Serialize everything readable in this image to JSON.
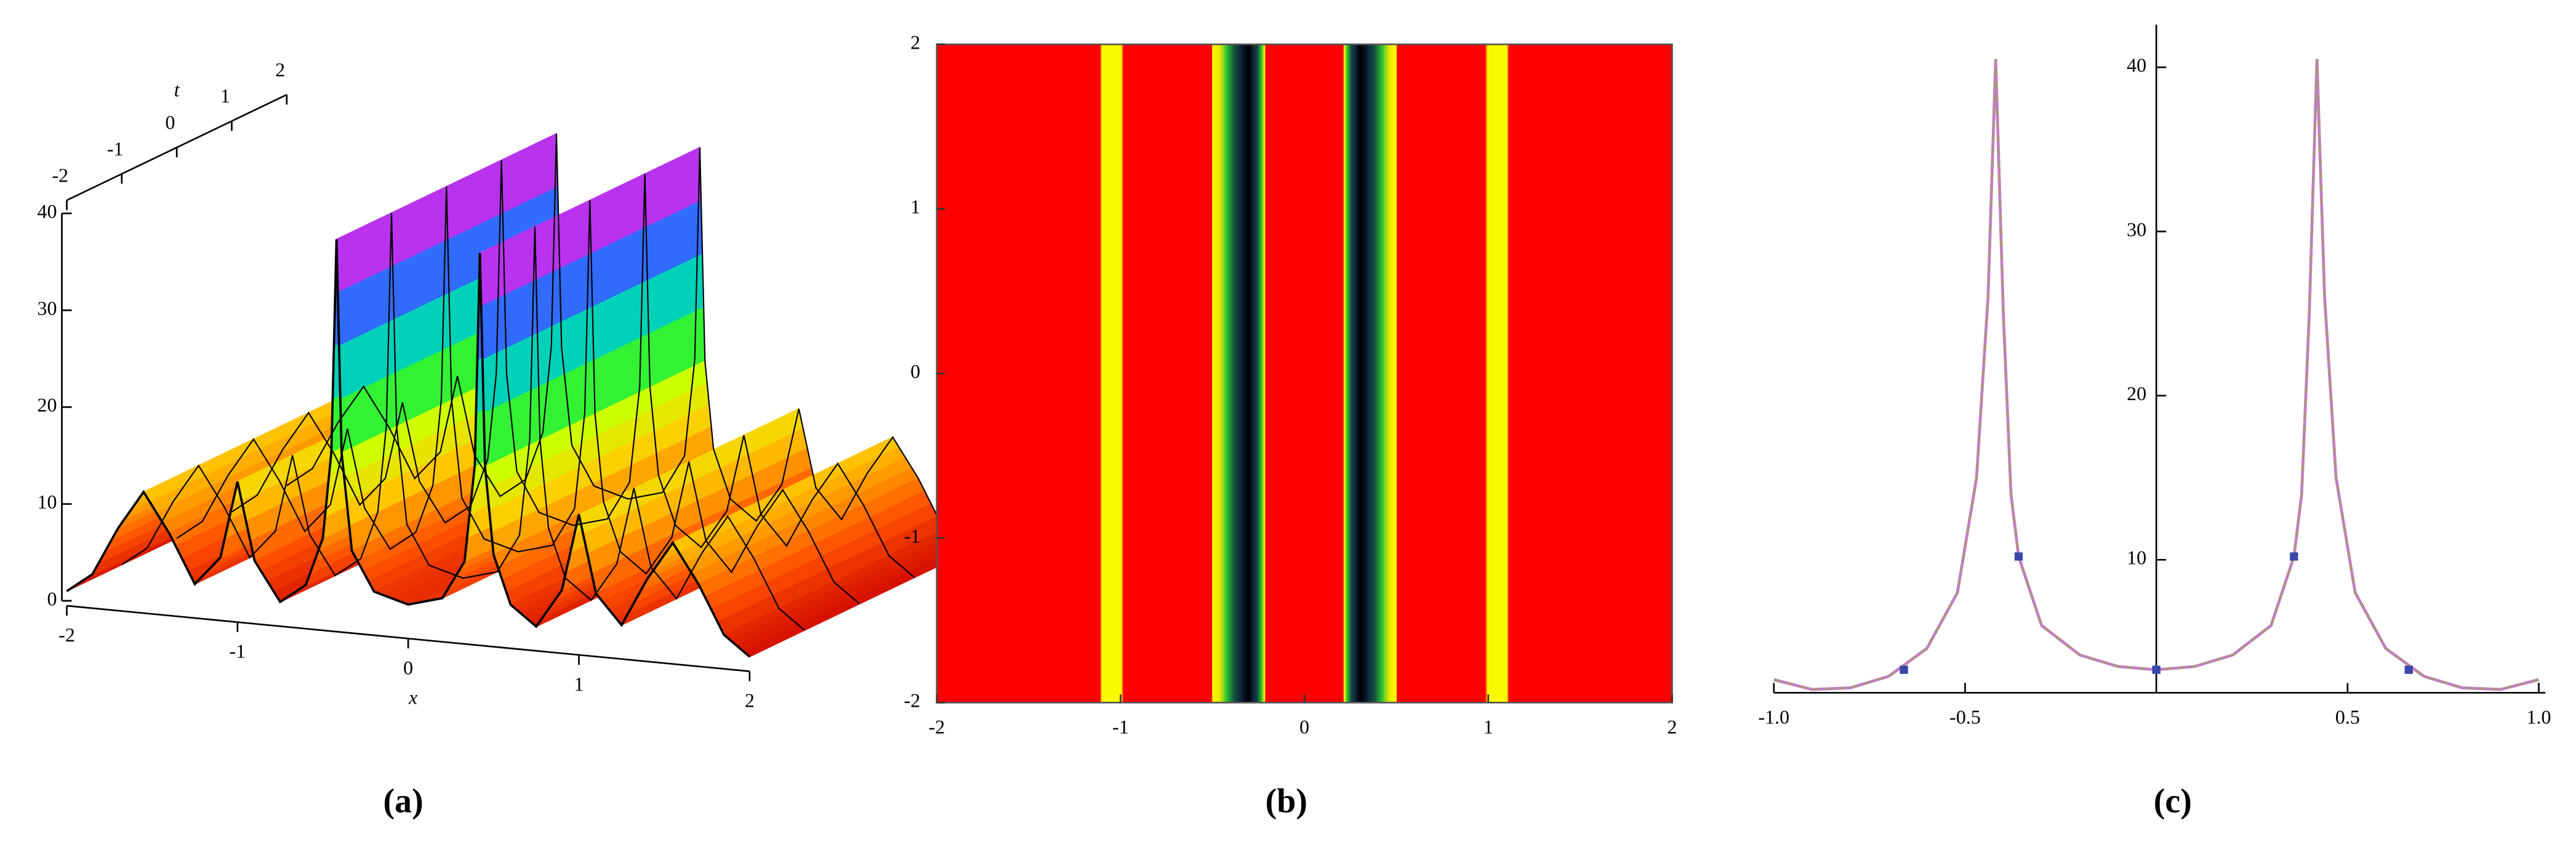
{
  "chart_data": [
    {
      "type": "surface3d",
      "caption": "(a)",
      "xlabel": "x",
      "tlabel": "t",
      "x": [
        -2,
        -1.85,
        -1.7,
        -1.55,
        -1.4,
        -1.25,
        -1.1,
        -1.0,
        -0.9,
        -0.75,
        -0.6,
        -0.5,
        -0.45,
        -0.42,
        -0.39,
        -0.33,
        -0.2,
        0,
        0.2,
        0.33,
        0.39,
        0.42,
        0.45,
        0.5,
        0.6,
        0.75,
        0.9,
        1.0,
        1.1,
        1.25,
        1.4,
        1.55,
        1.7,
        1.85,
        2
      ],
      "values": [
        1,
        3,
        8,
        12,
        8,
        3,
        6,
        14,
        6,
        2,
        4,
        9,
        18,
        40,
        18,
        8,
        4,
        3,
        4,
        8,
        18,
        40,
        18,
        9,
        4,
        2,
        6,
        14,
        6,
        3,
        8,
        12,
        8,
        3,
        1
      ],
      "xlim": [
        -2,
        2
      ],
      "tlim": [
        -2,
        2
      ],
      "zlim": [
        0,
        40
      ],
      "xticks": [
        -2,
        -1,
        0,
        1,
        2
      ],
      "tticks": [
        -2,
        -1,
        0,
        1,
        2
      ],
      "zticks": [
        0,
        10,
        20,
        30,
        40
      ],
      "colorscale": [
        {
          "value": 0,
          "color": "#cc0000"
        },
        {
          "value": 6,
          "color": "#ff5500"
        },
        {
          "value": 12,
          "color": "#ffcc00"
        },
        {
          "value": 17,
          "color": "#ccff00"
        },
        {
          "value": 22,
          "color": "#00ee44"
        },
        {
          "value": 27,
          "color": "#00cccc"
        },
        {
          "value": 32,
          "color": "#3366ff"
        },
        {
          "value": 36,
          "color": "#9933ff"
        },
        {
          "value": 40,
          "color": "#ff33cc"
        }
      ]
    },
    {
      "type": "density",
      "caption": "(b)",
      "x": [
        -2,
        -1.14,
        -1.1,
        -1.0,
        -0.94,
        -0.92,
        -0.52,
        -0.5,
        -0.44,
        -0.38,
        -0.33,
        -0.3,
        -0.26,
        -0.22,
        -0.2,
        0.2,
        0.22,
        0.26,
        0.3,
        0.33,
        0.38,
        0.44,
        0.5,
        0.52,
        0.92,
        0.94,
        1.0,
        1.1,
        1.14,
        2
      ],
      "values": [
        2,
        3,
        15,
        15,
        3,
        2,
        3,
        14,
        20,
        30,
        38,
        40,
        32,
        18,
        3,
        3,
        18,
        32,
        40,
        38,
        30,
        20,
        14,
        3,
        2,
        3,
        15,
        15,
        3,
        2
      ],
      "xlim": [
        -2,
        2
      ],
      "ylim": [
        -2,
        2
      ],
      "xticks": [
        -2,
        -1,
        0,
        1,
        2
      ],
      "yticks": [
        -2,
        -1,
        0,
        1,
        2
      ],
      "colorscale": [
        {
          "value": 0,
          "color": "#ff0000"
        },
        {
          "value": 12,
          "color": "#ff0000"
        },
        {
          "value": 14,
          "color": "#ffff00"
        },
        {
          "value": 18,
          "color": "#e6e600"
        },
        {
          "value": 22,
          "color": "#33cc33"
        },
        {
          "value": 30,
          "color": "#14503c"
        },
        {
          "value": 36,
          "color": "#102040"
        },
        {
          "value": 40,
          "color": "#000000"
        }
      ]
    },
    {
      "type": "line",
      "caption": "(c)",
      "color": "#c27ec2",
      "x": [
        -1,
        -0.9,
        -0.8,
        -0.7,
        -0.6,
        -0.52,
        -0.47,
        -0.44,
        -0.42,
        -0.4,
        -0.38,
        -0.36,
        -0.3,
        -0.2,
        -0.1,
        0,
        0.1,
        0.2,
        0.3,
        0.36,
        0.38,
        0.4,
        0.42,
        0.44,
        0.47,
        0.52,
        0.6,
        0.7,
        0.8,
        0.9,
        1
      ],
      "values": [
        2.7,
        2.1,
        2.2,
        2.9,
        4.6,
        8,
        15,
        26,
        40.5,
        25,
        14,
        10.2,
        6,
        4.2,
        3.5,
        3.3,
        3.5,
        4.2,
        6,
        10.2,
        14,
        25,
        40.5,
        26,
        15,
        8,
        4.6,
        2.9,
        2.2,
        2.1,
        2.7
      ],
      "points": {
        "color": "#3a46a8",
        "x": [
          -0.66,
          -0.36,
          0,
          0.36,
          0.66
        ],
        "values": [
          3.3,
          10.2,
          3.3,
          10.2,
          3.3
        ]
      },
      "xlim": [
        -1,
        1
      ],
      "ylim": [
        1.9,
        42
      ],
      "xticks": [
        {
          "value": -1,
          "label": "-1.0"
        },
        {
          "value": -0.5,
          "label": "-0.5"
        },
        {
          "value": 0.5,
          "label": "0.5"
        },
        {
          "value": 1,
          "label": "1.0"
        }
      ],
      "yticks": [
        10,
        20,
        30,
        40
      ]
    }
  ]
}
